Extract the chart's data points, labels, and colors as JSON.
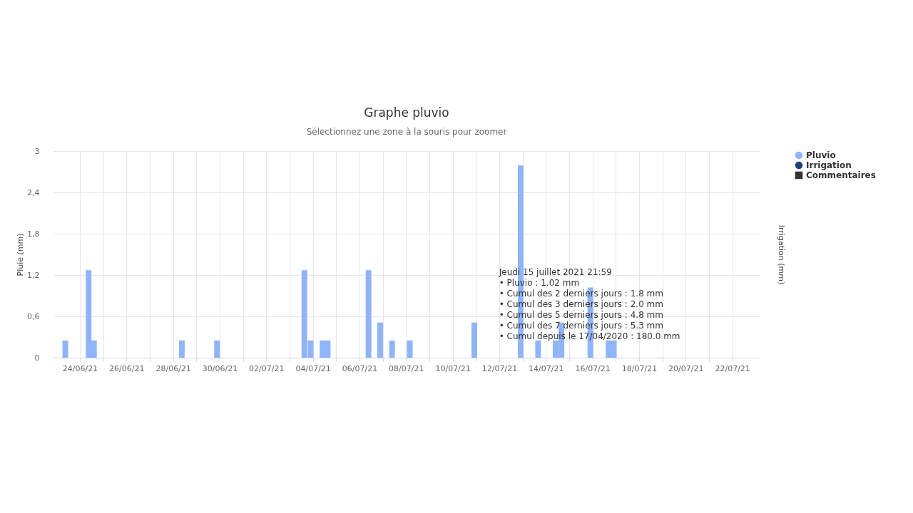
{
  "chart_data": {
    "type": "bar",
    "title": "Graphe pluvio",
    "subtitle": "Sélectionnez une zone à la souris pour zoomer",
    "ylabel": "Pluie (mm)",
    "y2label": "Irrigation (mm)",
    "series": [
      {
        "name": "Pluvio",
        "color": "#90b4f8",
        "x": [
          "2021-06-23T09:00",
          "2021-06-24T09:00",
          "2021-06-24T14:30",
          "2021-06-28T09:00",
          "2021-06-29T21:15",
          "2021-07-03T15:15",
          "2021-07-03T21:40",
          "2021-07-04T10:00",
          "2021-07-04T15:15",
          "2021-07-06T09:20",
          "2021-07-06T21:20",
          "2021-07-07T09:30",
          "2021-07-08T03:50",
          "2021-07-10T22:20",
          "2021-07-12T22:00",
          "2021-07-13T16:00",
          "2021-07-14T10:00",
          "2021-07-14T16:00",
          "2021-07-15T21:50",
          "2021-07-16T16:30",
          "2021-07-16T22:00"
        ],
        "values": [
          0.25,
          1.27,
          0.25,
          0.25,
          0.25,
          1.27,
          0.25,
          0.25,
          0.25,
          1.27,
          0.51,
          0.25,
          0.25,
          0.51,
          2.79,
          0.25,
          0.25,
          0.51,
          1.02,
          0.25,
          0.25
        ]
      },
      {
        "name": "Irrigation",
        "color": "#1f3d7a",
        "axis": "y2",
        "marker": "circle"
      },
      {
        "name": "Commentaires",
        "color": "#333333",
        "marker": "square"
      }
    ],
    "xlim": [
      "2021-06-23T00:30",
      "2021-07-23T00:30"
    ],
    "xticks": [
      {
        "value": "2021-06-24",
        "label": "24/06/21"
      },
      {
        "value": "2021-06-25",
        "label": null
      },
      {
        "value": "2021-06-26",
        "label": "26/06/21"
      },
      {
        "value": "2021-06-27",
        "label": null
      },
      {
        "value": "2021-06-28",
        "label": "28/06/21"
      },
      {
        "value": "2021-06-29",
        "label": null
      },
      {
        "value": "2021-06-30",
        "label": "30/06/21"
      },
      {
        "value": "2021-07-01",
        "label": null
      },
      {
        "value": "2021-07-02",
        "label": "02/07/21"
      },
      {
        "value": "2021-07-03",
        "label": null
      },
      {
        "value": "2021-07-04",
        "label": "04/07/21"
      },
      {
        "value": "2021-07-05",
        "label": null
      },
      {
        "value": "2021-07-06",
        "label": "06/07/21"
      },
      {
        "value": "2021-07-07",
        "label": null
      },
      {
        "value": "2021-07-08",
        "label": "08/07/21"
      },
      {
        "value": "2021-07-09",
        "label": null
      },
      {
        "value": "2021-07-10",
        "label": "10/07/21"
      },
      {
        "value": "2021-07-11",
        "label": null
      },
      {
        "value": "2021-07-12",
        "label": "12/07/21"
      },
      {
        "value": "2021-07-13",
        "label": null
      },
      {
        "value": "2021-07-14",
        "label": "14/07/21"
      },
      {
        "value": "2021-07-15",
        "label": null
      },
      {
        "value": "2021-07-16",
        "label": "16/07/21"
      },
      {
        "value": "2021-07-17",
        "label": null
      },
      {
        "value": "2021-07-18",
        "label": "18/07/21"
      },
      {
        "value": "2021-07-19",
        "label": null
      },
      {
        "value": "2021-07-20",
        "label": "20/07/21"
      },
      {
        "value": "2021-07-21",
        "label": null
      },
      {
        "value": "2021-07-22",
        "label": "22/07/21"
      }
    ],
    "ylim": [
      0,
      3
    ],
    "yticks": [
      0,
      {
        "value": 0.6,
        "label": "0,6"
      },
      {
        "value": 1.2,
        "label": "1,2"
      },
      {
        "value": 1.8,
        "label": "1,8"
      },
      {
        "value": 2.4,
        "label": "2,4"
      },
      3
    ],
    "grid": true,
    "legend": "right",
    "annotations": [
      {
        "text": "Jeudi 15 juillet 2021 21:59\n• Pluvio : 1.02 mm\n• Cumul des 2 derniers jours : 1.8 mm\n• Cumul des 3 derniers jours : 2.0 mm\n• Cumul des 5 derniers jours : 4.8 mm\n• Cumul des 7 derniers jours : 5.3 mm\n• Cumul depuis le 17/04/2020 : 180.0 mm",
        "x": "2021-07-15T21:50",
        "y": 1.02
      }
    ]
  }
}
